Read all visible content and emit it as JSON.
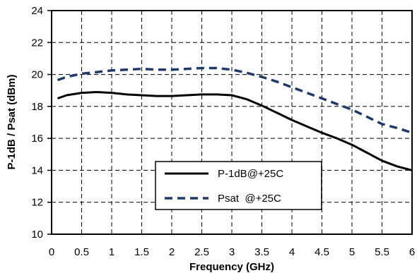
{
  "chart_data": {
    "type": "line",
    "xlabel": "Frequency (GHz)",
    "ylabel": "P-1dB / Psat (dBm)",
    "xlim": [
      0,
      6
    ],
    "ylim": [
      10,
      24
    ],
    "x_ticks": [
      "0",
      "0.5",
      "1",
      "1.5",
      "2",
      "2.5",
      "3",
      "3.5",
      "4",
      "4.5",
      "5",
      "5.5",
      "6"
    ],
    "y_ticks": [
      "10",
      "12",
      "14",
      "16",
      "18",
      "20",
      "22",
      "24"
    ],
    "grid": true,
    "legend_position": "bottom-center",
    "series": [
      {
        "name": "P-1dB@+25C",
        "color": "#000000",
        "style": "solid",
        "x": [
          0.1,
          0.25,
          0.5,
          0.75,
          1.0,
          1.25,
          1.5,
          1.75,
          2.0,
          2.25,
          2.5,
          2.75,
          3.0,
          3.25,
          3.5,
          3.75,
          4.0,
          4.25,
          4.5,
          4.75,
          5.0,
          5.25,
          5.5,
          5.75,
          6.0
        ],
        "y": [
          18.5,
          18.7,
          18.85,
          18.9,
          18.85,
          18.75,
          18.7,
          18.65,
          18.65,
          18.7,
          18.75,
          18.75,
          18.7,
          18.45,
          18.05,
          17.6,
          17.15,
          16.75,
          16.35,
          16.0,
          15.6,
          15.1,
          14.6,
          14.25,
          14.0
        ]
      },
      {
        "name": "Psat  @+25C",
        "color": "#1f3a68",
        "style": "dashed",
        "x": [
          0.1,
          0.25,
          0.5,
          0.75,
          1.0,
          1.25,
          1.5,
          1.75,
          2.0,
          2.25,
          2.5,
          2.75,
          3.0,
          3.25,
          3.5,
          3.75,
          4.0,
          4.25,
          4.5,
          4.75,
          5.0,
          5.25,
          5.5,
          5.75,
          6.0
        ],
        "y": [
          19.65,
          19.85,
          20.05,
          20.15,
          20.25,
          20.3,
          20.35,
          20.3,
          20.3,
          20.35,
          20.4,
          20.4,
          20.3,
          20.1,
          19.85,
          19.55,
          19.2,
          18.85,
          18.5,
          18.15,
          17.8,
          17.35,
          16.9,
          16.65,
          16.35
        ]
      }
    ]
  }
}
